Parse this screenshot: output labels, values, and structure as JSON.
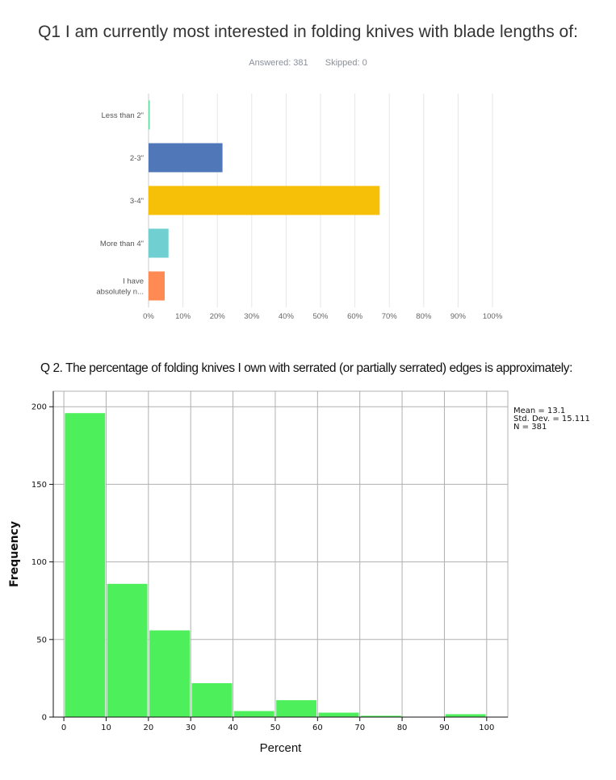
{
  "chart1": {
    "title": "Q1 I am currently most interested in folding knives with blade lengths of:",
    "answered_label": "Answered: 381",
    "skipped_label": "Skipped: 0"
  },
  "chart2": {
    "title": "Q 2. The percentage of folding knives I own with serrated (or partially serrated) edges is approximately:",
    "stats": {
      "mean": "Mean = 13.1",
      "std": "Std. Dev. = 15.111",
      "n": "N = 381"
    }
  },
  "chart_data": [
    {
      "type": "bar",
      "orientation": "horizontal",
      "title": "Q1 I am currently most interested in folding knives with blade lengths of:",
      "categories": [
        "Less than 2\"",
        "2-3\"",
        "3-4\"",
        "More than 4\"",
        "I have absolutely n..."
      ],
      "category_labels": [
        [
          "Less than 2\""
        ],
        [
          "2-3\""
        ],
        [
          "3-4\""
        ],
        [
          "More than 4\""
        ],
        [
          "I have",
          "absolutely n..."
        ]
      ],
      "values": [
        0.3,
        21.5,
        67.2,
        5.8,
        4.7
      ],
      "colors": [
        "#67d9a0",
        "#5078b8",
        "#f5c007",
        "#6fcfd1",
        "#ff8a54"
      ],
      "xlim": [
        0,
        100
      ],
      "x_ticks": [
        0,
        10,
        20,
        30,
        40,
        50,
        60,
        70,
        80,
        90,
        100
      ],
      "x_tick_labels": [
        "0%",
        "10%",
        "20%",
        "30%",
        "40%",
        "50%",
        "60%",
        "70%",
        "80%",
        "90%",
        "100%"
      ],
      "grid": true
    },
    {
      "type": "bar",
      "subtype": "histogram",
      "title": "Q 2. The percentage of folding knives I own with serrated (or partially serrated) edges is approximately:",
      "xlabel": "Percent",
      "ylabel": "Frequency",
      "bins": [
        [
          0,
          10
        ],
        [
          10,
          20
        ],
        [
          20,
          30
        ],
        [
          30,
          40
        ],
        [
          40,
          50
        ],
        [
          50,
          60
        ],
        [
          60,
          70
        ],
        [
          70,
          80
        ],
        [
          80,
          90
        ],
        [
          90,
          100
        ]
      ],
      "values": [
        196,
        86,
        56,
        22,
        4,
        11,
        3,
        1,
        0,
        2
      ],
      "xlim": [
        -2.5,
        105
      ],
      "ylim": [
        0,
        210
      ],
      "x_ticks": [
        0,
        10,
        20,
        30,
        40,
        50,
        60,
        70,
        80,
        90,
        100
      ],
      "y_ticks": [
        0,
        50,
        100,
        150,
        200
      ],
      "color": "#4def5a",
      "grid": true
    }
  ]
}
